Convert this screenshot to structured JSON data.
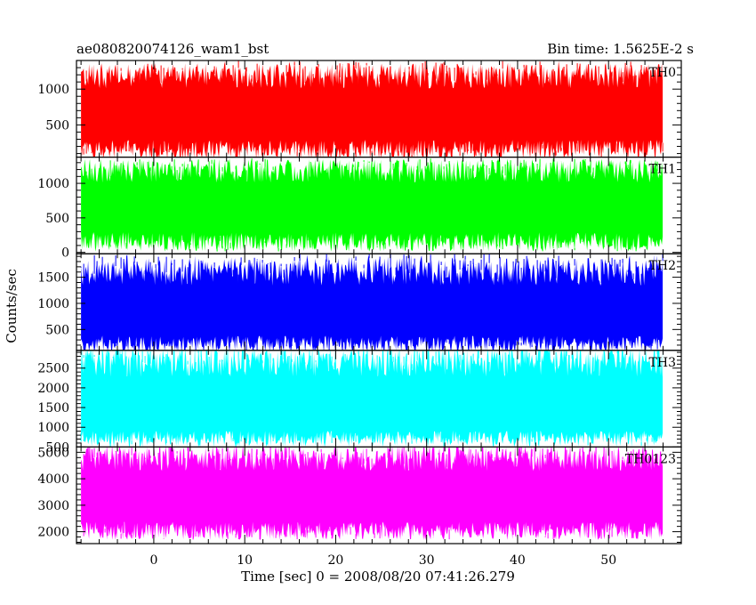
{
  "chart_data": {
    "type": "line",
    "title": "ae080820074126_wam1_bst",
    "subtitle": "Bin time: 1.5625E-2 s",
    "xlabel": "Time [sec] 0 = 2008/08/20 07:41:26.279",
    "ylabel": "Counts/sec",
    "xlim": [
      -8.5,
      58
    ],
    "data_x_range": [
      -8,
      56
    ],
    "x_ticks": [
      0,
      10,
      20,
      30,
      40,
      50
    ],
    "x_tick_labels": [
      "0",
      "10",
      "20",
      "30",
      "40",
      "50"
    ],
    "grid": false,
    "panels": [
      {
        "name": "TH0",
        "color": "#ff0000",
        "ylim": [
          50,
          1400
        ],
        "y_ticks": [
          500,
          1000
        ],
        "y_tick_labels": [
          "500",
          "1000"
        ],
        "series": {
          "mean": 650,
          "low": 180,
          "high": 1150,
          "min": 60,
          "max": 1400
        }
      },
      {
        "name": "TH1",
        "color": "#00ff00",
        "ylim": [
          -20,
          1380
        ],
        "y_ticks": [
          0,
          500,
          1000
        ],
        "y_tick_labels": [
          "0",
          "500",
          "1000"
        ],
        "series": {
          "mean": 650,
          "low": 180,
          "high": 1150,
          "min": 50,
          "max": 1350
        }
      },
      {
        "name": "TH2",
        "color": "#0000ff",
        "ylim": [
          100,
          1950
        ],
        "y_ticks": [
          500,
          1000,
          1500
        ],
        "y_tick_labels": [
          "500",
          "1000",
          "1500"
        ],
        "series": {
          "mean": 800,
          "low": 250,
          "high": 1550,
          "min": 150,
          "max": 1950
        }
      },
      {
        "name": "TH3",
        "color": "#00ffff",
        "ylim": [
          500,
          2950
        ],
        "y_ticks": [
          500,
          1000,
          1500,
          2000,
          2500
        ],
        "y_tick_labels": [
          "500",
          "1000",
          "1500",
          "2000",
          "2500"
        ],
        "series": {
          "mean": 1450,
          "low": 750,
          "high": 2600,
          "min": 600,
          "max": 2950
        }
      },
      {
        "name": "TH0123",
        "color": "#ff00ff",
        "ylim": [
          1550,
          5200
        ],
        "y_ticks": [
          2000,
          3000,
          4000,
          5000
        ],
        "y_tick_labels": [
          "2000",
          "3000",
          "4000",
          "5000"
        ],
        "series": {
          "mean": 3250,
          "low": 2100,
          "high": 4700,
          "min": 1700,
          "max": 5200
        }
      }
    ]
  }
}
